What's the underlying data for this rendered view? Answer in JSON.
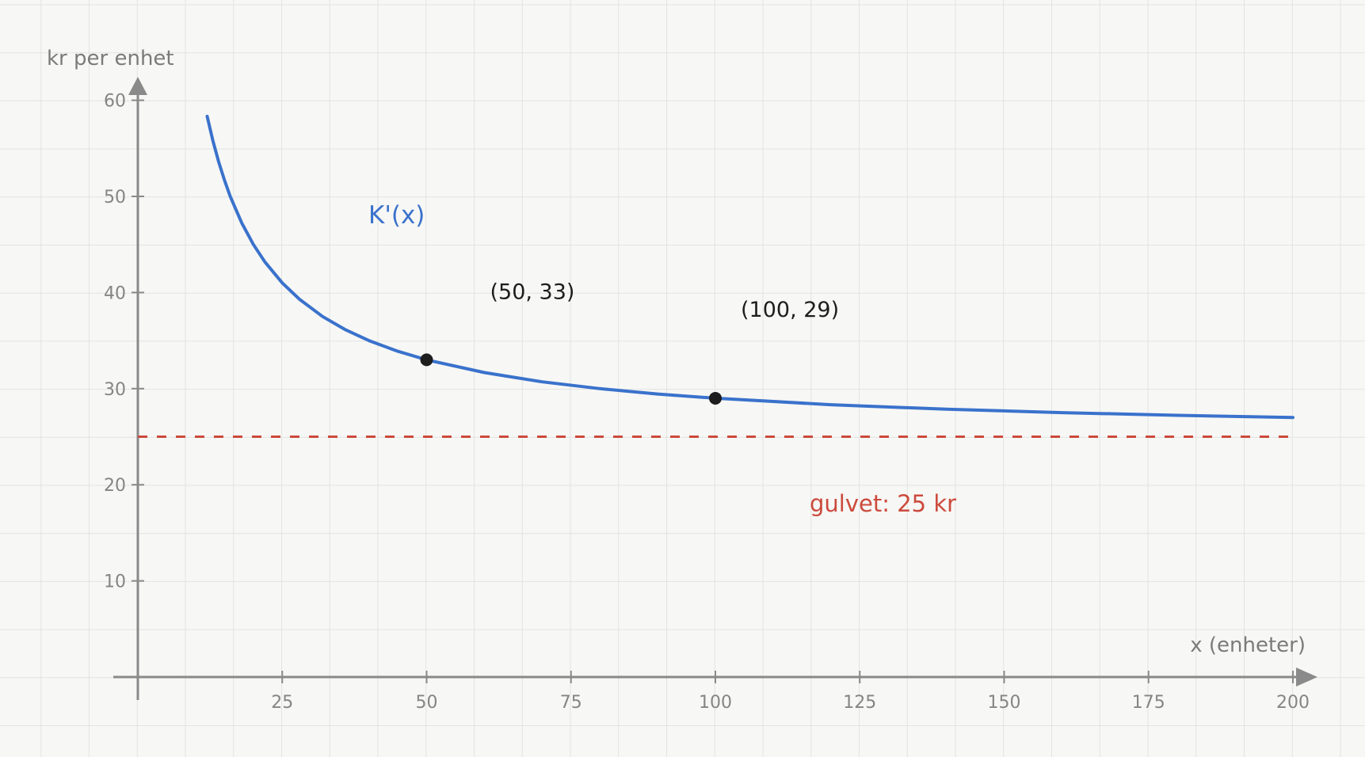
{
  "chart_data": {
    "type": "line",
    "ylabel": "kr per enhet",
    "xlabel": "x (enheter)",
    "xlim": [
      0,
      200
    ],
    "ylim": [
      0,
      60
    ],
    "x_ticks": [
      25,
      50,
      75,
      100,
      125,
      150,
      175,
      200
    ],
    "y_ticks": [
      10,
      20,
      30,
      40,
      50,
      60
    ],
    "grid": true,
    "series": [
      {
        "name": "K'(x)",
        "color": "#3a72cc",
        "formula": "25 + 400/x",
        "x": [
          12,
          13,
          14,
          15,
          16,
          18,
          20,
          22,
          25,
          28,
          32,
          36,
          40,
          45,
          50,
          60,
          70,
          80,
          90,
          100,
          120,
          140,
          160,
          180,
          200
        ],
        "y": [
          58.33,
          55.77,
          53.57,
          51.67,
          50,
          47.22,
          45,
          43.18,
          41,
          39.29,
          37.5,
          36.11,
          35,
          33.89,
          33,
          31.67,
          30.71,
          30,
          29.44,
          29,
          28.33,
          27.86,
          27.5,
          27.22,
          27
        ]
      }
    ],
    "reference_line": {
      "y": 25,
      "label": "gulvet: 25 kr",
      "color": "#cc4a3c",
      "style": "dashed"
    },
    "points": [
      {
        "x": 50,
        "y": 33,
        "label": "(50, 33)"
      },
      {
        "x": 100,
        "y": 29,
        "label": "(100, 29)"
      }
    ]
  }
}
